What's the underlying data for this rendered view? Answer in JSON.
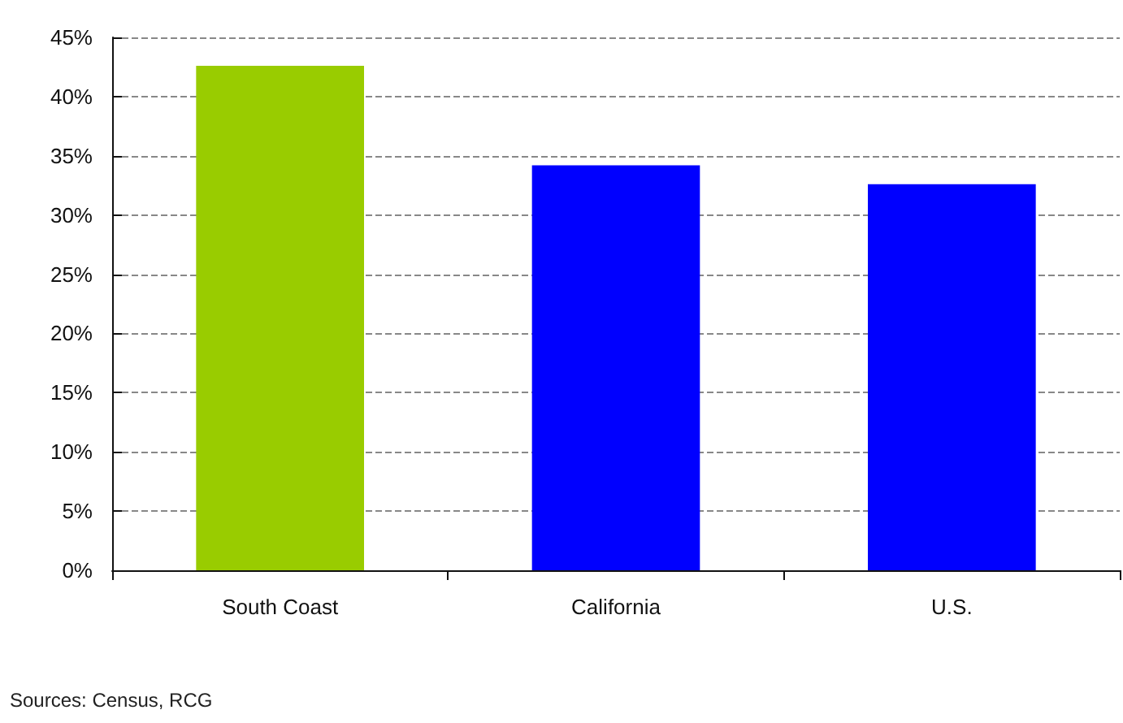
{
  "chart_data": {
    "type": "bar",
    "categories": [
      "South Coast",
      "California",
      "U.S."
    ],
    "values": [
      42.6,
      34.2,
      32.6
    ],
    "colors": [
      "#99cc00",
      "#0000ff",
      "#0000ff"
    ],
    "ylim": [
      0,
      45
    ],
    "yticks": [
      {
        "value": 0,
        "label": "0%"
      },
      {
        "value": 5,
        "label": "5%"
      },
      {
        "value": 10,
        "label": "10%"
      },
      {
        "value": 15,
        "label": "15%"
      },
      {
        "value": 20,
        "label": "20%"
      },
      {
        "value": 25,
        "label": "25%"
      },
      {
        "value": 30,
        "label": "30%"
      },
      {
        "value": 35,
        "label": "35%"
      },
      {
        "value": 40,
        "label": "40%"
      },
      {
        "value": 45,
        "label": "45%"
      }
    ],
    "grid": "y",
    "annotations": [
      "Sources: Census, RCG"
    ]
  }
}
